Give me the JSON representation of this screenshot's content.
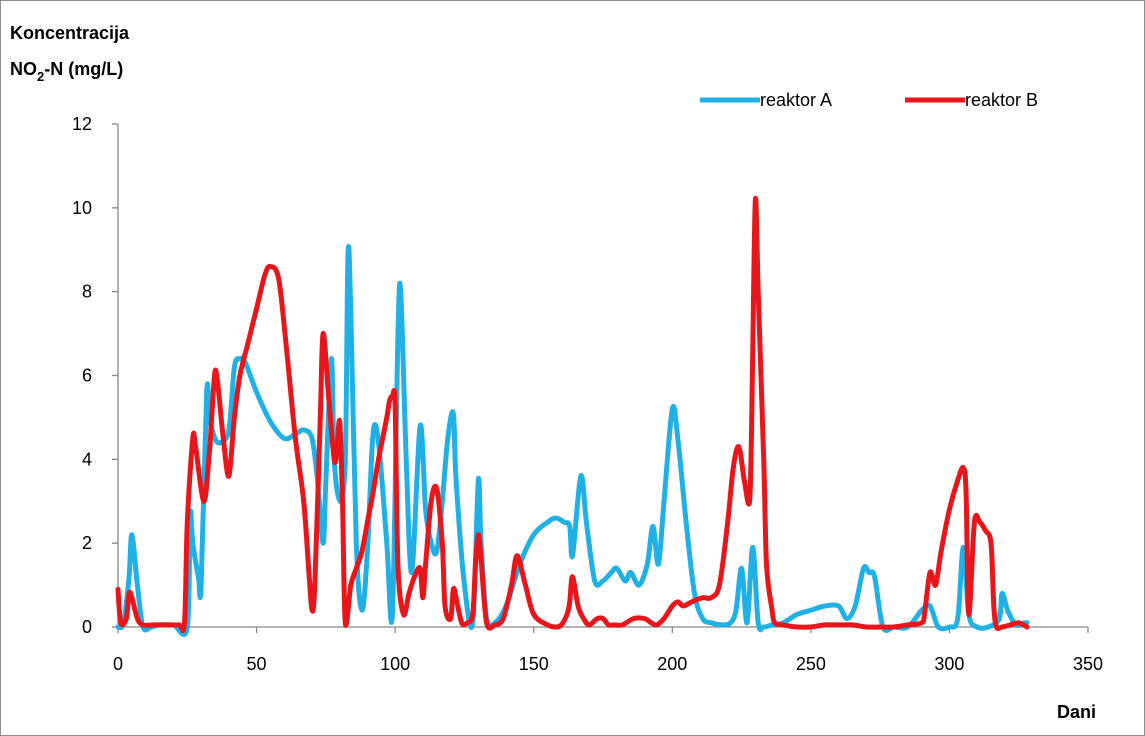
{
  "chart_data": {
    "type": "line",
    "ylabel_line1": "Koncentracija",
    "ylabel_line2_main": "NO",
    "ylabel_line2_sub": "2",
    "ylabel_line2_rest": "-N (mg/L)",
    "xlabel": "Dani",
    "xlim": [
      0,
      350
    ],
    "ylim": [
      0,
      12
    ],
    "xticks": [
      0,
      50,
      100,
      150,
      200,
      250,
      300,
      350
    ],
    "yticks": [
      0,
      2,
      4,
      6,
      8,
      10,
      12
    ],
    "grid": false,
    "legend_position": "top-right",
    "series": [
      {
        "name": "reaktor A",
        "color": "#1fb0e6",
        "x": [
          0,
          2,
          4,
          5,
          7,
          9,
          12,
          15,
          20,
          25,
          26,
          27,
          29,
          30,
          32,
          33,
          35,
          37,
          40,
          42,
          44,
          46,
          50,
          55,
          60,
          64,
          67,
          70,
          72,
          74,
          75,
          77,
          78,
          80,
          82,
          83,
          84,
          86,
          88,
          90,
          92,
          94,
          97,
          99,
          101,
          102,
          104,
          106,
          109,
          111,
          113,
          115,
          117,
          119,
          121,
          122,
          125,
          128,
          130,
          131,
          133,
          136,
          140,
          145,
          150,
          155,
          158,
          161,
          163,
          164,
          167,
          169,
          172,
          175,
          178,
          180,
          183,
          185,
          188,
          191,
          193,
          195,
          197,
          200,
          202,
          205,
          208,
          211,
          214,
          218,
          221,
          223,
          225,
          227,
          229,
          231,
          233,
          236,
          240,
          245,
          250,
          255,
          260,
          263,
          266,
          269,
          271,
          273,
          276,
          280,
          285,
          290,
          293,
          296,
          300,
          303,
          305,
          307,
          310,
          314,
          318,
          319,
          321,
          324,
          327,
          328
        ],
        "values": [
          0,
          0.1,
          1.2,
          2.2,
          1.0,
          0,
          0,
          0.05,
          0.05,
          0,
          2.7,
          2.0,
          1.2,
          1.0,
          5.6,
          5.0,
          4.5,
          4.4,
          4.7,
          6.2,
          6.4,
          6.3,
          5.6,
          4.9,
          4.5,
          4.6,
          4.7,
          4.5,
          3.5,
          2.0,
          3.5,
          6.4,
          4.0,
          3.0,
          4.0,
          8.9,
          7.5,
          2.0,
          0.4,
          1.8,
          4.6,
          4.4,
          2.0,
          0.3,
          6.9,
          8.0,
          4.0,
          1.3,
          4.8,
          2.8,
          2.0,
          1.8,
          3.0,
          4.5,
          5.1,
          3.5,
          1.0,
          0.1,
          3.5,
          2.0,
          0.2,
          0.1,
          0.5,
          1.5,
          2.2,
          2.5,
          2.6,
          2.5,
          2.4,
          1.7,
          3.6,
          2.5,
          1.1,
          1.1,
          1.3,
          1.4,
          1.1,
          1.3,
          1.0,
          1.5,
          2.4,
          1.5,
          3.0,
          5.2,
          4.5,
          2.5,
          0.8,
          0.2,
          0.1,
          0.05,
          0.1,
          0.4,
          1.4,
          0.1,
          1.9,
          0.1,
          0,
          0.05,
          0.1,
          0.3,
          0.4,
          0.5,
          0.5,
          0.2,
          0.5,
          1.4,
          1.3,
          1.2,
          0,
          0,
          0,
          0.4,
          0.5,
          0,
          0,
          0.2,
          1.9,
          0.3,
          0,
          0,
          0.2,
          0.8,
          0.4,
          0.05,
          0.1,
          0.1
        ]
      },
      {
        "name": "reaktor B",
        "color": "#e8161b",
        "x": [
          0,
          1,
          3,
          4,
          5,
          7,
          9,
          13,
          17,
          22,
          24,
          25,
          27,
          28,
          31,
          33,
          34,
          35,
          36,
          38,
          40,
          42,
          44,
          47,
          50,
          53,
          55,
          58,
          61,
          64,
          67,
          69,
          70,
          71,
          73,
          74,
          76,
          78,
          79,
          80,
          81,
          82,
          84,
          86,
          88,
          90,
          92,
          94,
          97,
          98,
          99,
          100,
          101,
          103,
          105,
          107,
          109,
          110,
          111,
          113,
          115,
          117,
          118,
          120,
          121,
          122,
          124,
          126,
          128,
          129,
          130,
          131,
          133,
          136,
          139,
          142,
          144,
          147,
          150,
          155,
          158,
          160,
          162,
          163,
          164,
          166,
          168,
          170,
          173,
          175,
          177,
          179,
          182,
          186,
          190,
          194,
          197,
          200,
          202,
          204,
          207,
          211,
          214,
          217,
          220,
          222,
          224,
          226,
          228,
          229,
          230,
          231,
          233,
          234,
          236,
          237,
          240,
          245,
          250,
          255,
          260,
          265,
          270,
          275,
          280,
          285,
          290,
          291,
          293,
          295,
          297,
          300,
          303,
          305,
          306,
          307,
          309,
          311,
          313,
          315,
          316,
          317,
          319,
          322,
          325,
          328
        ],
        "values": [
          0.9,
          0.1,
          0.2,
          0.8,
          0.7,
          0.2,
          0.05,
          0.05,
          0.05,
          0.05,
          0.1,
          2.5,
          4.5,
          4.3,
          3.0,
          4.2,
          5.2,
          6.1,
          5.8,
          4.5,
          3.6,
          5.0,
          6.0,
          6.8,
          7.6,
          8.4,
          8.6,
          8.3,
          6.5,
          4.5,
          3.0,
          1.2,
          0.4,
          1.0,
          5.0,
          7.0,
          5.5,
          4.0,
          4.2,
          4.9,
          3.0,
          0.1,
          1.0,
          1.4,
          1.8,
          2.5,
          3.2,
          4.0,
          5.0,
          5.4,
          5.5,
          5.3,
          1.5,
          0.3,
          0.8,
          1.2,
          1.4,
          0.7,
          1.5,
          3.0,
          3.3,
          2.0,
          0.5,
          0.2,
          0.9,
          0.7,
          0.1,
          0.1,
          0.3,
          1.5,
          2.2,
          1.6,
          0.1,
          0.05,
          0.2,
          1.0,
          1.7,
          1.0,
          0.3,
          0.05,
          0,
          0.05,
          0.3,
          0.6,
          1.2,
          0.5,
          0.2,
          0.05,
          0.2,
          0.2,
          0.05,
          0.05,
          0.05,
          0.2,
          0.2,
          0.05,
          0.2,
          0.5,
          0.6,
          0.5,
          0.6,
          0.7,
          0.7,
          1.0,
          2.5,
          3.8,
          4.3,
          3.5,
          3.1,
          6.5,
          10.2,
          8.0,
          4.0,
          1.5,
          0.4,
          0.1,
          0.05,
          0,
          0,
          0.05,
          0.05,
          0.05,
          0,
          0,
          0,
          0.05,
          0.1,
          0.3,
          1.3,
          1.0,
          1.8,
          2.8,
          3.5,
          3.8,
          3.2,
          0.3,
          2.5,
          2.5,
          2.3,
          2.0,
          0.5,
          0,
          0,
          0.05,
          0.1,
          0
        ]
      }
    ]
  }
}
